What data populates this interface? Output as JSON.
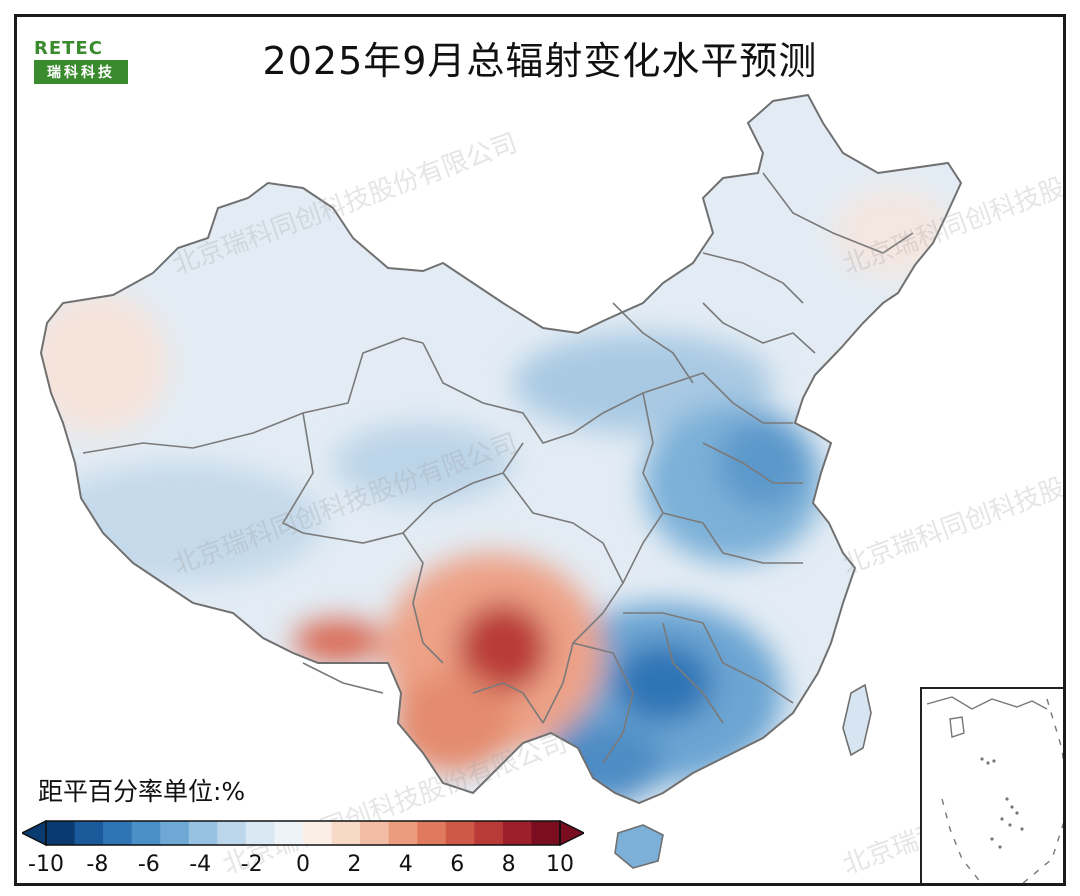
{
  "title": "2025年9月总辐射变化水平预测",
  "logo": {
    "top": "RETEC",
    "bottom": "瑞科科技"
  },
  "watermark": "北京瑞科同创科技股份有限公司",
  "legend": {
    "unit_label": "距平百分率单位:%",
    "ticks": [
      "-10",
      "-8",
      "-6",
      "-4",
      "-2",
      "0",
      "2",
      "4",
      "6",
      "8",
      "10"
    ],
    "colors": [
      "#0a3b70",
      "#1a5a9a",
      "#2f74b5",
      "#4a8fc6",
      "#6ea8d4",
      "#97c2e2",
      "#bcd7ec",
      "#dae8f3",
      "#eef3f7",
      "#fbeee6",
      "#f8d9c8",
      "#f3bca4",
      "#eb9b7e",
      "#df7a5e",
      "#cf5947",
      "#b93a37",
      "#9c1f2b",
      "#7a0d20"
    ],
    "extend": "both"
  },
  "map_data": {
    "type": "choropleth",
    "region": "China",
    "variable": "总辐射距平百分率",
    "range": [
      -10,
      10
    ],
    "features": [
      {
        "area": "Southwest (Sichuan/Chongqing/Guizhou/Yunnan)",
        "anomaly_pct": 8
      },
      {
        "area": "South Tibet",
        "anomaly_pct": 5
      },
      {
        "area": "Northwest Xinjiang",
        "anomaly_pct": 1
      },
      {
        "area": "Northeast",
        "anomaly_pct": 0
      },
      {
        "area": "Hunan/Guangxi/Guangdong",
        "anomaly_pct": -8
      },
      {
        "area": "Shandong/Jiangsu/Anhui",
        "anomaly_pct": -6
      },
      {
        "area": "Tibet/Qinghai",
        "anomaly_pct": -3
      }
    ]
  }
}
